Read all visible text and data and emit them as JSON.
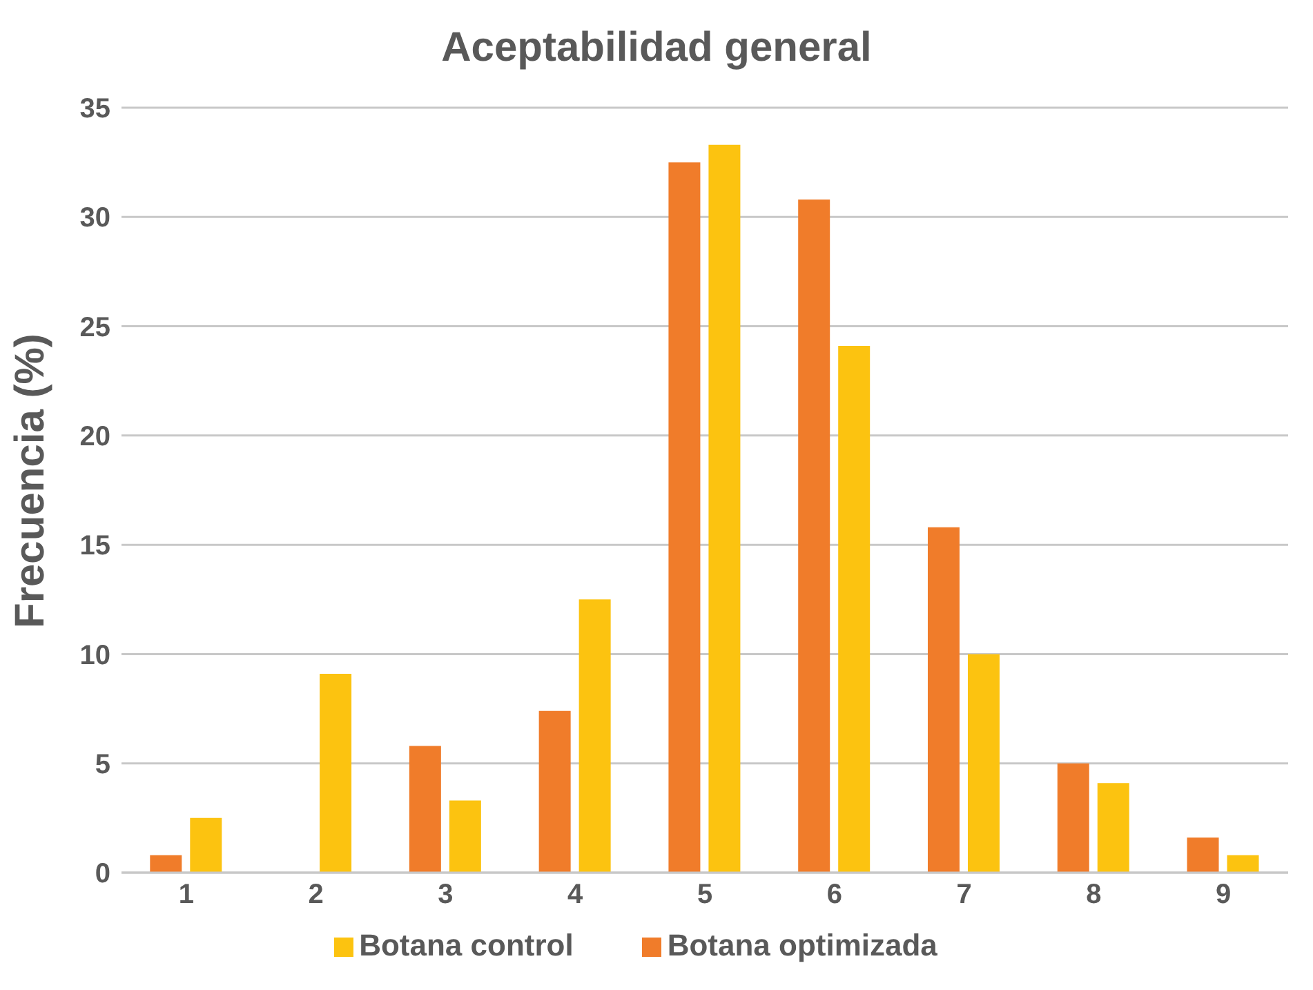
{
  "chart_data": {
    "type": "bar",
    "title": "Aceptabilidad general",
    "ylabel": "Frecuencia (%)",
    "categories": [
      "1",
      "2",
      "3",
      "4",
      "5",
      "6",
      "7",
      "8",
      "9"
    ],
    "series": [
      {
        "name": "Botana optimizada",
        "color": "#f07c2a",
        "values": [
          0.8,
          0,
          5.8,
          7.4,
          32.5,
          30.8,
          15.8,
          5.0,
          1.6
        ]
      },
      {
        "name": "Botana control",
        "color": "#fcc310",
        "values": [
          2.5,
          9.1,
          3.3,
          12.5,
          33.3,
          24.1,
          10.0,
          4.1,
          0.8
        ]
      }
    ],
    "ylim": [
      0,
      35
    ],
    "yticks": [
      0,
      5,
      10,
      15,
      20,
      25,
      30,
      35
    ],
    "grid": "y",
    "legend": "bottom"
  }
}
